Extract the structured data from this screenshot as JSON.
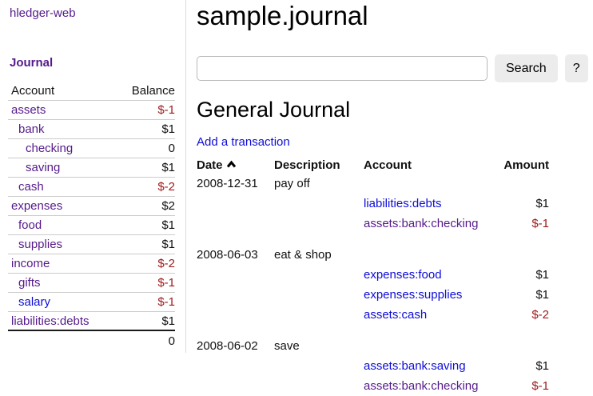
{
  "palette": {
    "purple_visited": "#551a8b",
    "blue_link": "#0d0dd6",
    "negative_red": "#9e1a1a",
    "divider": "#dddddd",
    "row_border": "#cccccc",
    "button_bg": "#ececec"
  },
  "sidebar": {
    "app_link": "hledger-web",
    "section_title": "Journal",
    "table": {
      "account_header": "Account",
      "balance_header": "Balance",
      "accounts": [
        {
          "name": "assets",
          "depth": 1,
          "balance": "$-1",
          "link_color": "visited"
        },
        {
          "name": "bank",
          "depth": 2,
          "balance": "$1",
          "link_color": "visited"
        },
        {
          "name": "checking",
          "depth": 3,
          "balance": "0",
          "link_color": "visited"
        },
        {
          "name": "saving",
          "depth": 3,
          "balance": "$1",
          "link_color": "visited"
        },
        {
          "name": "cash",
          "depth": 2,
          "balance": "$-2",
          "link_color": "visited"
        },
        {
          "name": "expenses",
          "depth": 1,
          "balance": "$2",
          "link_color": "visited"
        },
        {
          "name": "food",
          "depth": 2,
          "balance": "$1",
          "link_color": "visited"
        },
        {
          "name": "supplies",
          "depth": 2,
          "balance": "$1",
          "link_color": "visited"
        },
        {
          "name": "income",
          "depth": 1,
          "balance": "$-2",
          "link_color": "visited"
        },
        {
          "name": "gifts",
          "depth": 2,
          "balance": "$-1",
          "link_color": "visited"
        },
        {
          "name": "salary",
          "depth": 2,
          "balance": "$-1",
          "link_color": "unvisited"
        },
        {
          "name": "liabilities:debts",
          "depth": 1,
          "balance": "$1",
          "link_color": "visited"
        }
      ],
      "total": "0"
    }
  },
  "main": {
    "title": "sample.journal",
    "search": {
      "value": "",
      "placeholder": "",
      "search_button": "Search",
      "help_button": "?"
    },
    "journal": {
      "heading": "General Journal",
      "add_link": "Add a transaction",
      "columns": {
        "date": "Date",
        "description": "Description",
        "account": "Account",
        "amount": "Amount"
      },
      "sort": {
        "column": "date",
        "direction": "ascending",
        "icon": "chevron-up-icon"
      },
      "transactions": [
        {
          "date": "2008-12-31",
          "description": "pay off",
          "postings": [
            {
              "account": "liabilities:debts",
              "amount": "$1",
              "link_color": "unvisited"
            },
            {
              "account": "assets:bank:checking",
              "amount": "$-1",
              "link_color": "visited"
            }
          ]
        },
        {
          "date": "2008-06-03",
          "description": "eat & shop",
          "postings": [
            {
              "account": "expenses:food",
              "amount": "$1",
              "link_color": "unvisited"
            },
            {
              "account": "expenses:supplies",
              "amount": "$1",
              "link_color": "unvisited"
            },
            {
              "account": "assets:cash",
              "amount": "$-2",
              "link_color": "unvisited"
            }
          ]
        },
        {
          "date": "2008-06-02",
          "description": "save",
          "postings": [
            {
              "account": "assets:bank:saving",
              "amount": "$1",
              "link_color": "unvisited"
            },
            {
              "account": "assets:bank:checking",
              "amount": "$-1",
              "link_color": "visited"
            }
          ]
        }
      ]
    }
  }
}
